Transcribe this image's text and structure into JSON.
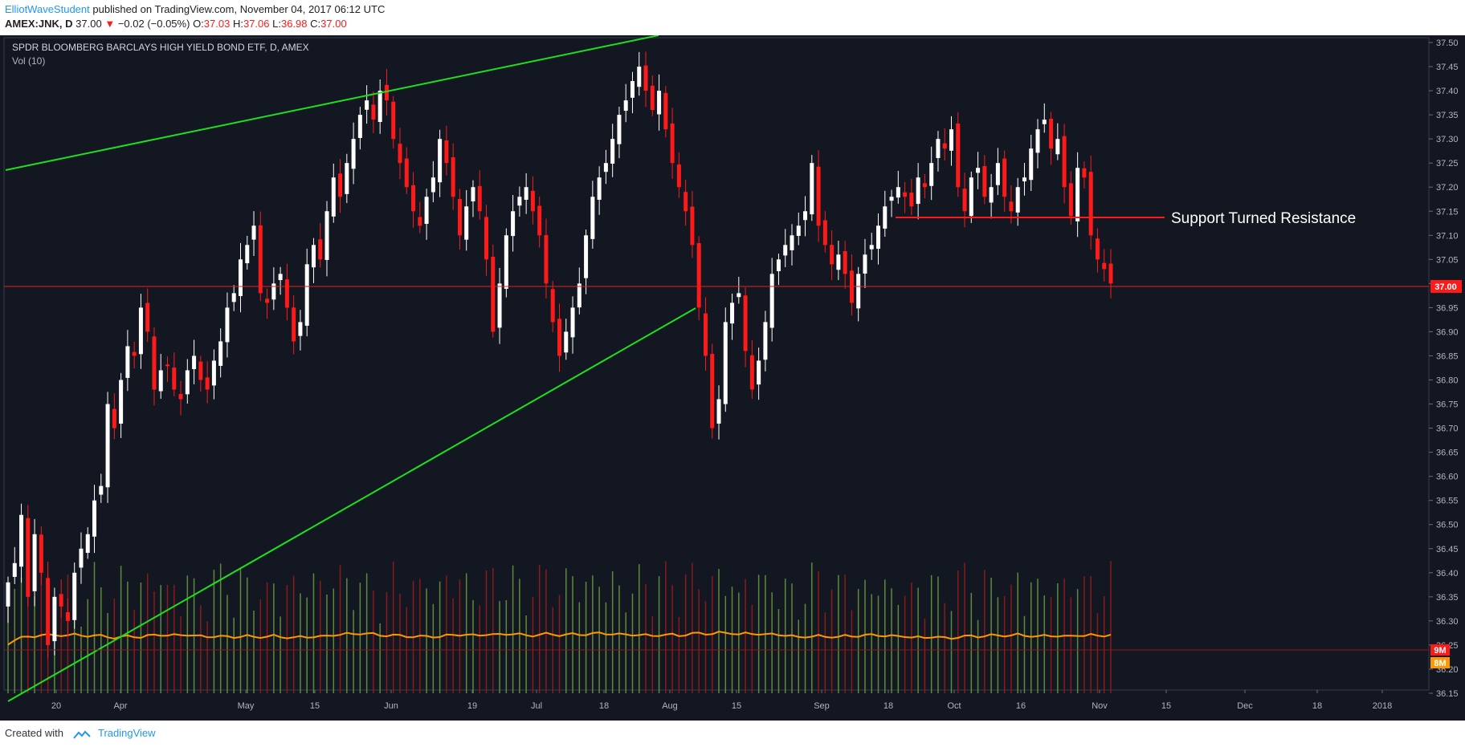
{
  "header": {
    "author": "ElliotWaveStudent",
    "published_text": "published on TradingView.com, November 04, 2017 06:12 UTC",
    "symbol_text": "AMEX:JNK, D",
    "last_price": "37.00",
    "arrow": "▼",
    "change": "−0.02 (−0.05%)",
    "o_label": "O:",
    "o_value": "37.03",
    "h_label": "H:",
    "h_value": "37.06",
    "l_label": "L:",
    "l_value": "36.98",
    "c_label": "C:",
    "c_value": "37.00"
  },
  "chart": {
    "title": "SPDR BLOOMBERG BARCLAYS HIGH YIELD BOND ETF, D, AMEX",
    "indicator": "Vol (10)",
    "annotation": "Support Turned Resistance",
    "current_price_label": "37.00",
    "volume_labels": [
      "9M",
      "8M"
    ]
  },
  "footer": {
    "created_with": "Created with",
    "brand": "TradingView"
  },
  "colors": {
    "background": "#131722",
    "up_candle": "#ffffff",
    "down_candle": "#ff1a1a",
    "trendline": "#1fe01f",
    "resistance": "#ff1a1a",
    "volume_ma": "#ff9800",
    "author_link": "#2196f3"
  },
  "chart_data": {
    "type": "candlestick",
    "title": "SPDR BLOOMBERG BARCLAYS HIGH YIELD BOND ETF, D, AMEX",
    "ylim": [
      36.12,
      37.54
    ],
    "y_ticks": [
      "37.50",
      "37.45",
      "37.40",
      "37.35",
      "37.30",
      "37.25",
      "37.20",
      "37.15",
      "37.10",
      "37.05",
      "37.00",
      "36.95",
      "36.90",
      "36.85",
      "36.80",
      "36.75",
      "36.70",
      "36.65",
      "36.60",
      "36.55",
      "36.50",
      "36.45",
      "36.40",
      "36.35",
      "36.30",
      "36.25",
      "36.20",
      "36.15"
    ],
    "x_ticks": [
      "20",
      "Apr",
      "May",
      "15",
      "Jun",
      "19",
      "Jul",
      "18",
      "Aug",
      "15",
      "Sep",
      "18",
      "Oct",
      "16",
      "Nov",
      "15",
      "Dec",
      "18",
      "2018"
    ],
    "closes": [
      36.38,
      36.42,
      36.52,
      36.35,
      36.48,
      36.4,
      36.25,
      36.35,
      36.33,
      36.3,
      36.4,
      36.45,
      36.48,
      36.55,
      36.58,
      36.75,
      36.7,
      36.8,
      36.87,
      36.85,
      36.95,
      36.9,
      36.78,
      36.82,
      36.83,
      36.78,
      36.76,
      36.82,
      36.85,
      36.8,
      36.78,
      36.84,
      36.88,
      36.95,
      36.98,
      37.05,
      37.08,
      37.12,
      36.98,
      36.96,
      37.0,
      37.02,
      36.95,
      36.88,
      36.92,
      37.04,
      37.08,
      37.05,
      37.15,
      37.22,
      37.18,
      37.25,
      37.3,
      37.35,
      37.38,
      37.34,
      37.4,
      37.38,
      37.3,
      37.25,
      37.2,
      37.15,
      37.12,
      37.18,
      37.22,
      37.3,
      37.25,
      37.18,
      37.1,
      37.16,
      37.2,
      37.15,
      37.05,
      36.9,
      37.0,
      37.1,
      37.15,
      37.18,
      37.2,
      37.15,
      37.1,
      37.0,
      36.92,
      36.85,
      36.9,
      36.95,
      37.0,
      37.1,
      37.18,
      37.22,
      37.25,
      37.3,
      37.35,
      37.38,
      37.42,
      37.45,
      37.4,
      37.36,
      37.4,
      37.32,
      37.25,
      37.2,
      37.15,
      37.08,
      36.95,
      36.85,
      36.7,
      36.76,
      36.92,
      36.96,
      36.98,
      36.86,
      36.78,
      36.84,
      36.92,
      37.02,
      37.05,
      37.08,
      37.1,
      37.12,
      37.15,
      37.25,
      37.12,
      37.08,
      37.04,
      37.06,
      37.02,
      36.96,
      37.02,
      37.06,
      37.08,
      37.12,
      37.16,
      37.18,
      37.2,
      37.18,
      37.16,
      37.22,
      37.2,
      37.25,
      37.3,
      37.28,
      37.32,
      37.2,
      37.15,
      37.22,
      37.24,
      37.18,
      37.2,
      37.25,
      37.18,
      37.15,
      37.2,
      37.22,
      37.28,
      37.32,
      37.34,
      37.28,
      37.3,
      37.2,
      37.14,
      37.24,
      37.22,
      37.1,
      37.05,
      37.03,
      37.0
    ],
    "volume_ma_label": "Vol (10)",
    "volume_axis_labels": [
      "9M",
      "8M"
    ],
    "annotations": [
      {
        "type": "trendline",
        "description": "upper green trendline"
      },
      {
        "type": "trendline",
        "description": "lower green trendline"
      },
      {
        "type": "horizontal",
        "price": 37.145,
        "label": "Support Turned Resistance"
      },
      {
        "type": "price_line",
        "price": 37.0
      }
    ],
    "grid": false
  }
}
